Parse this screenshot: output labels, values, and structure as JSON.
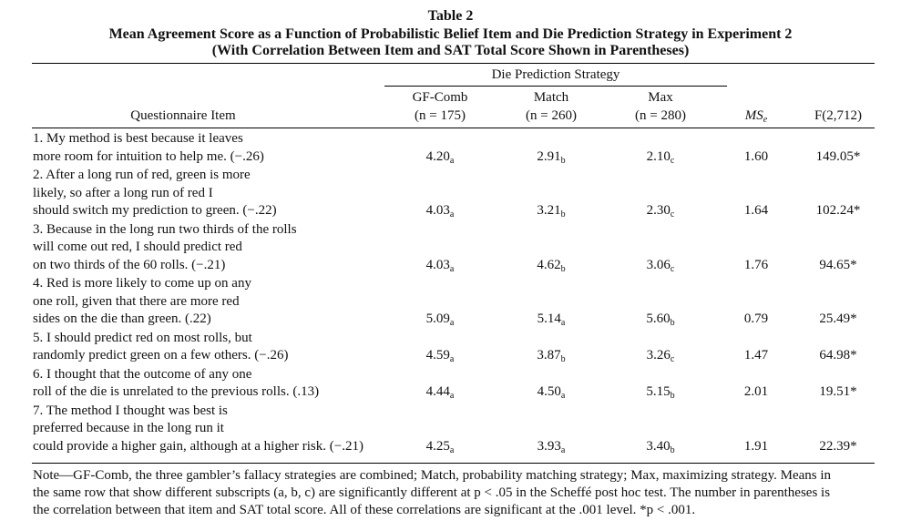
{
  "table": {
    "label": "Table 2",
    "title": "Mean Agreement Score as a Function of Probabilistic Belief Item and Die Prediction Strategy in Experiment 2",
    "subtitle": "(With Correlation Between Item and SAT Total Score Shown in Parentheses)",
    "spanner": "Die Prediction Strategy",
    "col_item": "Questionnaire Item",
    "columns": [
      {
        "name": "GF-Comb",
        "n": "(n = 175)"
      },
      {
        "name": "Match",
        "n": "(n = 260)"
      },
      {
        "name": "Max",
        "n": "(n = 280)"
      }
    ],
    "col_ms": "MS",
    "col_ms_sub": "e",
    "col_f": "F(2,712)",
    "rows": [
      {
        "lines": [
          "1. My method is best because it leaves",
          "more room for intuition to help me. (−.26)"
        ],
        "gf": "4.20",
        "gf_sub": "a",
        "match": "2.91",
        "match_sub": "b",
        "max": "2.10",
        "max_sub": "c",
        "ms": "1.60",
        "f": "149.05*"
      },
      {
        "lines": [
          "2. After a long run of red, green is more",
          "likely, so after a long run of red I",
          "should switch my prediction to green. (−.22)"
        ],
        "gf": "4.03",
        "gf_sub": "a",
        "match": "3.21",
        "match_sub": "b",
        "max": "2.30",
        "max_sub": "c",
        "ms": "1.64",
        "f": "102.24*"
      },
      {
        "lines": [
          "3. Because in the long run two thirds of the rolls",
          "will come out red, I should predict red",
          "on two thirds of the 60 rolls. (−.21)"
        ],
        "gf": "4.03",
        "gf_sub": "a",
        "match": "4.62",
        "match_sub": "b",
        "max": "3.06",
        "max_sub": "c",
        "ms": "1.76",
        "f": "94.65*"
      },
      {
        "lines": [
          "4. Red is more likely to come up on any",
          "one roll, given that there are more red",
          "sides on the die than green. (.22)"
        ],
        "gf": "5.09",
        "gf_sub": "a",
        "match": "5.14",
        "match_sub": "a",
        "max": "5.60",
        "max_sub": "b",
        "ms": "0.79",
        "f": "25.49*"
      },
      {
        "lines": [
          "5. I should predict red on most rolls, but",
          "randomly predict green on a few others. (−.26)"
        ],
        "gf": "4.59",
        "gf_sub": "a",
        "match": "3.87",
        "match_sub": "b",
        "max": "3.26",
        "max_sub": "c",
        "ms": "1.47",
        "f": "64.98*"
      },
      {
        "lines": [
          "6. I thought that the outcome of any one",
          "roll of the die is unrelated to the previous rolls. (.13)"
        ],
        "gf": "4.44",
        "gf_sub": "a",
        "match": "4.50",
        "match_sub": "a",
        "max": "5.15",
        "max_sub": "b",
        "ms": "2.01",
        "f": "19.51*"
      },
      {
        "lines": [
          "7. The method I thought was best is",
          "preferred because in the long run it",
          "could provide a higher gain, although at a higher risk. (−.21)"
        ],
        "gf": "4.25",
        "gf_sub": "a",
        "match": "3.93",
        "match_sub": "a",
        "max": "3.40",
        "max_sub": "b",
        "ms": "1.91",
        "f": "22.39*"
      }
    ],
    "note_lines": [
      "Note—GF-Comb, the three gambler’s fallacy strategies are combined; Match, probability matching strategy; Max, maximizing strategy. Means in",
      "the same row that show different subscripts (a, b, c) are significantly different at p < .05 in the Scheffé post hoc test. The number in parentheses is",
      "the correlation between that item and SAT total score. All of these correlations are significant at the .001 level.     *p < .001."
    ]
  }
}
